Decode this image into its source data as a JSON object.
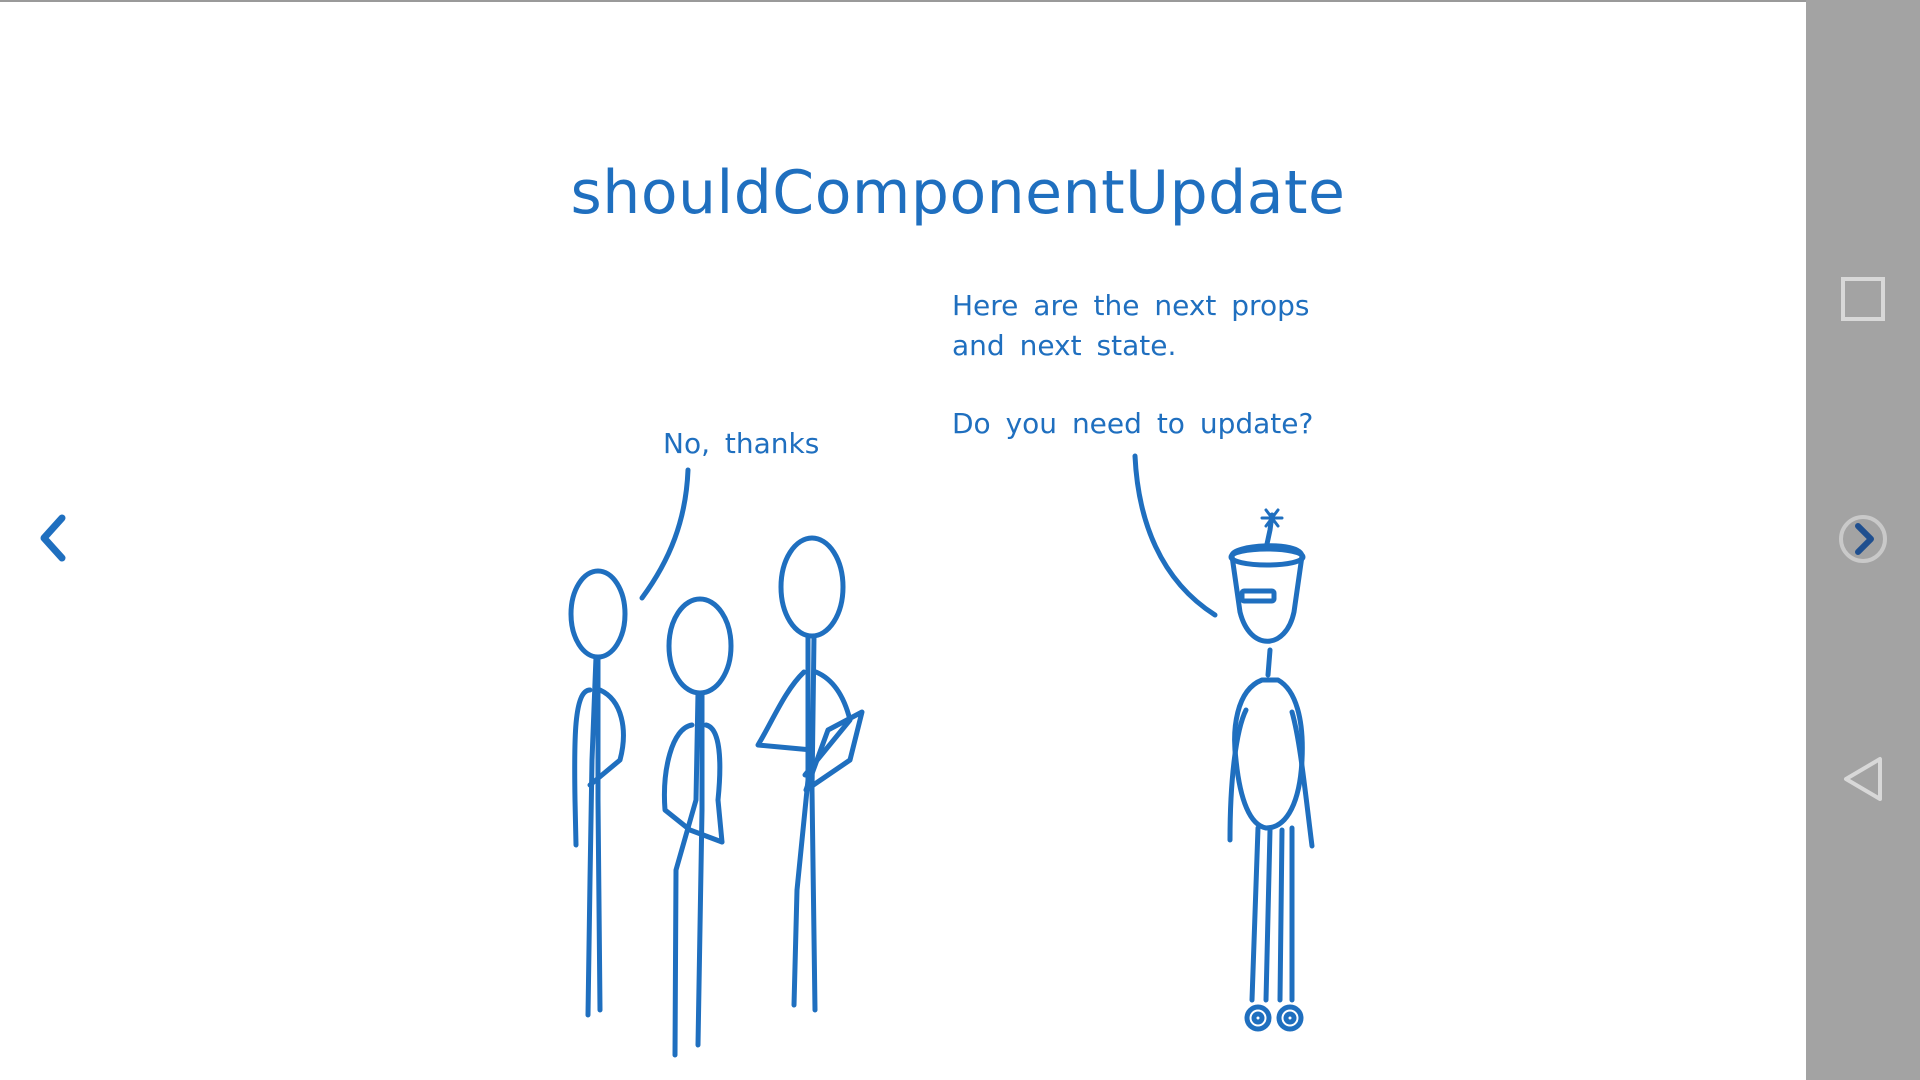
{
  "slide": {
    "title": "shouldComponentUpdate",
    "left_speech": "No, thanks",
    "right_speech_lines": [
      "Here are the next props",
      "and next state.",
      "Do you need to update?"
    ]
  },
  "icons": {
    "prev": "chevron-left-icon",
    "next": "chevron-right-icon",
    "recents": "square-icon",
    "back": "triangle-back-icon"
  },
  "colors": {
    "ink": "#1f6fbf",
    "navbar": "#a3a3a3",
    "background": "#ffffff"
  }
}
